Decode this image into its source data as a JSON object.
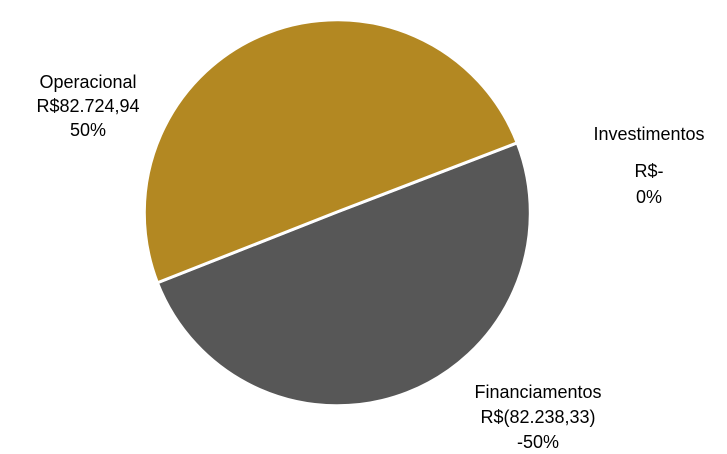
{
  "chart_data": {
    "type": "pie",
    "slices": [
      {
        "name": "Operacional",
        "value_label": "R$82.724,94",
        "percent_label": "50%",
        "share": 0.5014,
        "color": "#B38822"
      },
      {
        "name": "Investimentos",
        "value_label": "R$-",
        "percent_label": "0%",
        "share": 0.0,
        "color": "#B38822"
      },
      {
        "name": "Financiamentos",
        "value_label": "R$(82.238,33)",
        "percent_label": "-50%",
        "share": 0.4986,
        "color": "#575757"
      }
    ],
    "slice_border_color": "#FFFFFF"
  }
}
